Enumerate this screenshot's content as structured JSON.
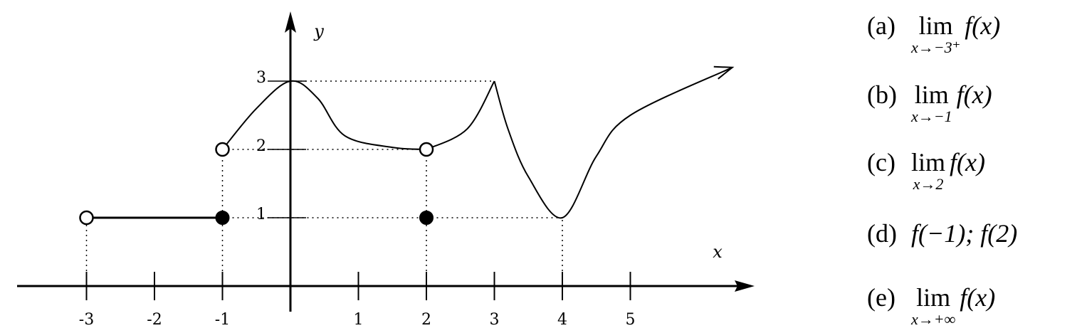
{
  "diagram": {
    "x_axis_label": "x",
    "y_axis_label": "y",
    "x_ticks": [
      {
        "value": -3,
        "label": "-3"
      },
      {
        "value": -2,
        "label": "-2"
      },
      {
        "value": -1,
        "label": "-1"
      },
      {
        "value": 1,
        "label": "1"
      },
      {
        "value": 2,
        "label": "2"
      },
      {
        "value": 3,
        "label": "3"
      },
      {
        "value": 4,
        "label": "4"
      },
      {
        "value": 5,
        "label": "5"
      }
    ],
    "y_ticks": [
      {
        "value": 1,
        "label": "1"
      },
      {
        "value": 2,
        "label": "2"
      },
      {
        "value": 3,
        "label": "3"
      }
    ],
    "segments": [
      {
        "type": "line",
        "points": [
          [
            -3,
            1
          ],
          [
            -1,
            1
          ]
        ]
      },
      {
        "type": "curve",
        "points": [
          [
            -1,
            2
          ],
          [
            -0.5,
            2.6
          ],
          [
            0,
            3
          ],
          [
            0.4,
            2.75
          ],
          [
            0.8,
            2.2
          ],
          [
            1.5,
            2.03
          ],
          [
            2,
            2
          ]
        ]
      },
      {
        "type": "curve",
        "points": [
          [
            2,
            2
          ],
          [
            2.6,
            2.3
          ],
          [
            3,
            3
          ]
        ]
      },
      {
        "type": "curve",
        "points": [
          [
            3,
            3
          ],
          [
            3.2,
            2.3
          ],
          [
            3.5,
            1.6
          ],
          [
            4,
            1
          ],
          [
            4.5,
            1.9
          ],
          [
            5,
            2.5
          ],
          [
            6.5,
            3.2
          ]
        ]
      }
    ],
    "open_points": [
      [
        -3,
        1
      ],
      [
        -1,
        2
      ],
      [
        2,
        2
      ]
    ],
    "closed_points": [
      [
        -1,
        1
      ],
      [
        2,
        1
      ]
    ],
    "guides": [
      {
        "from": [
          -3,
          0
        ],
        "to": [
          -3,
          1
        ]
      },
      {
        "from": [
          -1,
          0
        ],
        "to": [
          -1,
          2
        ]
      },
      {
        "from": [
          2,
          0
        ],
        "to": [
          2,
          2
        ]
      },
      {
        "from": [
          4,
          0
        ],
        "to": [
          4,
          1
        ]
      },
      {
        "from": [
          -1,
          1
        ],
        "to": [
          4,
          1
        ]
      },
      {
        "from": [
          -1,
          2
        ],
        "to": [
          2,
          2
        ]
      },
      {
        "from": [
          0,
          3
        ],
        "to": [
          3,
          3
        ]
      }
    ]
  },
  "questions": [
    {
      "tag": "(a)",
      "kind": "limit",
      "sub": "x→−3⁺",
      "expr": "f(x)"
    },
    {
      "tag": "(b)",
      "kind": "limit",
      "sub": "x→−1",
      "expr": "f(x)"
    },
    {
      "tag": "(c)",
      "kind": "limit",
      "sub": "x→2",
      "expr": "f(x)"
    },
    {
      "tag": "(d)",
      "kind": "value",
      "expr": "f(−1); f(2)"
    },
    {
      "tag": "(e)",
      "kind": "limit",
      "sub": "x→+∞",
      "expr": "f(x)"
    }
  ],
  "lim_word": "lim"
}
